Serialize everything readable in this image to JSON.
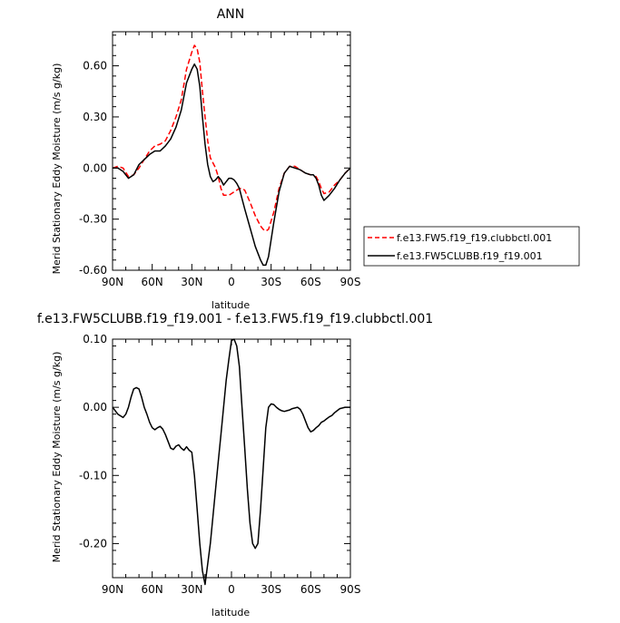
{
  "chart_data": [
    {
      "type": "line",
      "title": "ANN",
      "xlabel": "latitude",
      "ylabel": "Merid Stationary Eddy Moisture (m/s g/kg)",
      "xticklabels": [
        "90N",
        "60N",
        "30N",
        "0",
        "30S",
        "60S",
        "90S"
      ],
      "yticklabels": [
        "0.60",
        "0.30",
        "0.00",
        "-0.30",
        "-0.60"
      ],
      "yticks": [
        0.6,
        0.3,
        0.0,
        -0.3,
        -0.6
      ],
      "xlim": [
        90,
        -90
      ],
      "ylim": [
        -0.6,
        0.8
      ],
      "grid": false,
      "legend": "right",
      "series": [
        {
          "name": "f.e13.FW5.f19_f19.clubbctl.001",
          "color": "#ff0000",
          "dash": "dashed",
          "x": [
            90,
            86,
            82,
            78,
            74,
            70,
            66,
            62,
            58,
            54,
            50,
            46,
            42,
            38,
            34,
            30,
            28,
            26,
            24,
            22,
            20,
            18,
            16,
            14,
            12,
            10,
            8,
            6,
            4,
            2,
            0,
            -2,
            -4,
            -6,
            -8,
            -10,
            -14,
            -18,
            -20,
            -22,
            -24,
            -26,
            -28,
            -32,
            -36,
            -40,
            -44,
            -48,
            -52,
            -56,
            -60,
            -62,
            -64,
            -66,
            -68,
            -70,
            -74,
            -78,
            -82,
            -86,
            -90
          ],
          "y": [
            0.0,
            0.01,
            0.0,
            -0.05,
            -0.04,
            0.0,
            0.05,
            0.1,
            0.13,
            0.14,
            0.16,
            0.22,
            0.3,
            0.4,
            0.58,
            0.68,
            0.72,
            0.7,
            0.62,
            0.45,
            0.3,
            0.16,
            0.06,
            0.03,
            0.0,
            -0.05,
            -0.12,
            -0.16,
            -0.16,
            -0.16,
            -0.15,
            -0.14,
            -0.13,
            -0.12,
            -0.12,
            -0.13,
            -0.2,
            -0.28,
            -0.31,
            -0.34,
            -0.36,
            -0.37,
            -0.36,
            -0.26,
            -0.12,
            -0.03,
            0.01,
            0.01,
            -0.01,
            -0.03,
            -0.04,
            -0.04,
            -0.05,
            -0.08,
            -0.12,
            -0.15,
            -0.14,
            -0.1,
            -0.07,
            -0.03,
            0.0
          ]
        },
        {
          "name": "f.e13.FW5CLUBB.f19_f19.001",
          "color": "#000000",
          "dash": "solid",
          "x": [
            90,
            86,
            82,
            78,
            74,
            70,
            66,
            62,
            58,
            54,
            50,
            46,
            42,
            38,
            34,
            30,
            28,
            26,
            24,
            22,
            20,
            18,
            16,
            14,
            12,
            10,
            8,
            6,
            4,
            2,
            0,
            -2,
            -4,
            -6,
            -8,
            -10,
            -14,
            -18,
            -20,
            -22,
            -24,
            -26,
            -28,
            -32,
            -36,
            -40,
            -44,
            -48,
            -52,
            -56,
            -60,
            -62,
            -64,
            -66,
            -68,
            -70,
            -74,
            -78,
            -82,
            -86,
            -90
          ],
          "y": [
            0.0,
            0.0,
            -0.02,
            -0.06,
            -0.04,
            0.02,
            0.05,
            0.08,
            0.1,
            0.1,
            0.13,
            0.17,
            0.24,
            0.34,
            0.5,
            0.58,
            0.61,
            0.58,
            0.48,
            0.3,
            0.14,
            0.02,
            -0.05,
            -0.08,
            -0.07,
            -0.05,
            -0.07,
            -0.1,
            -0.08,
            -0.06,
            -0.06,
            -0.07,
            -0.09,
            -0.12,
            -0.18,
            -0.24,
            -0.35,
            -0.46,
            -0.5,
            -0.54,
            -0.57,
            -0.57,
            -0.52,
            -0.32,
            -0.14,
            -0.03,
            0.01,
            0.0,
            -0.01,
            -0.03,
            -0.04,
            -0.04,
            -0.06,
            -0.1,
            -0.16,
            -0.19,
            -0.16,
            -0.12,
            -0.07,
            -0.03,
            0.0
          ]
        }
      ]
    },
    {
      "type": "line",
      "title": "f.e13.FW5CLUBB.f19_f19.001 - f.e13.FW5.f19_f19.clubbctl.001",
      "xlabel": "latitude",
      "ylabel": "Merid Stationary Eddy Moisture (m/s g/kg)",
      "xticklabels": [
        "90N",
        "60N",
        "30N",
        "0",
        "30S",
        "60S",
        "90S"
      ],
      "yticklabels": [
        "0.10",
        "0.00",
        "-0.10",
        "-0.20"
      ],
      "yticks": [
        0.1,
        0.0,
        -0.1,
        -0.2
      ],
      "xlim": [
        90,
        -90
      ],
      "ylim": [
        -0.25,
        0.1
      ],
      "grid": false,
      "series": [
        {
          "color": "#000000",
          "dash": "solid",
          "x": [
            90,
            86,
            82,
            80,
            78,
            76,
            74,
            72,
            70,
            68,
            66,
            64,
            62,
            60,
            58,
            56,
            54,
            52,
            50,
            48,
            46,
            44,
            42,
            40,
            38,
            36,
            34,
            32,
            30,
            28,
            26,
            24,
            22,
            20,
            18,
            16,
            14,
            12,
            10,
            8,
            6,
            4,
            2,
            0,
            -2,
            -4,
            -6,
            -8,
            -10,
            -12,
            -14,
            -16,
            -18,
            -20,
            -22,
            -24,
            -26,
            -28,
            -30,
            -32,
            -34,
            -36,
            -38,
            -40,
            -42,
            -44,
            -46,
            -48,
            -50,
            -52,
            -54,
            -56,
            -58,
            -60,
            -62,
            -64,
            -66,
            -68,
            -70,
            -72,
            -74,
            -76,
            -78,
            -80,
            -82,
            -84,
            -86,
            -88,
            -90
          ],
          "y": [
            0.0,
            -0.01,
            -0.015,
            -0.01,
            0.0,
            0.015,
            0.027,
            0.029,
            0.027,
            0.015,
            0.0,
            -0.01,
            -0.022,
            -0.03,
            -0.033,
            -0.03,
            -0.028,
            -0.032,
            -0.04,
            -0.05,
            -0.06,
            -0.062,
            -0.057,
            -0.055,
            -0.06,
            -0.063,
            -0.058,
            -0.063,
            -0.066,
            -0.1,
            -0.15,
            -0.2,
            -0.24,
            -0.26,
            -0.23,
            -0.2,
            -0.16,
            -0.12,
            -0.08,
            -0.04,
            0.0,
            0.04,
            0.07,
            0.098,
            0.1,
            0.09,
            0.06,
            0.0,
            -0.06,
            -0.12,
            -0.17,
            -0.2,
            -0.207,
            -0.2,
            -0.15,
            -0.09,
            -0.03,
            0.0,
            0.005,
            0.004,
            0.0,
            -0.003,
            -0.005,
            -0.006,
            -0.005,
            -0.004,
            -0.002,
            -0.001,
            0.0,
            -0.003,
            -0.01,
            -0.02,
            -0.03,
            -0.036,
            -0.034,
            -0.03,
            -0.027,
            -0.022,
            -0.02,
            -0.017,
            -0.014,
            -0.012,
            -0.008,
            -0.005,
            -0.002,
            -0.001,
            0.0,
            0.0,
            0.0
          ]
        }
      ]
    }
  ]
}
